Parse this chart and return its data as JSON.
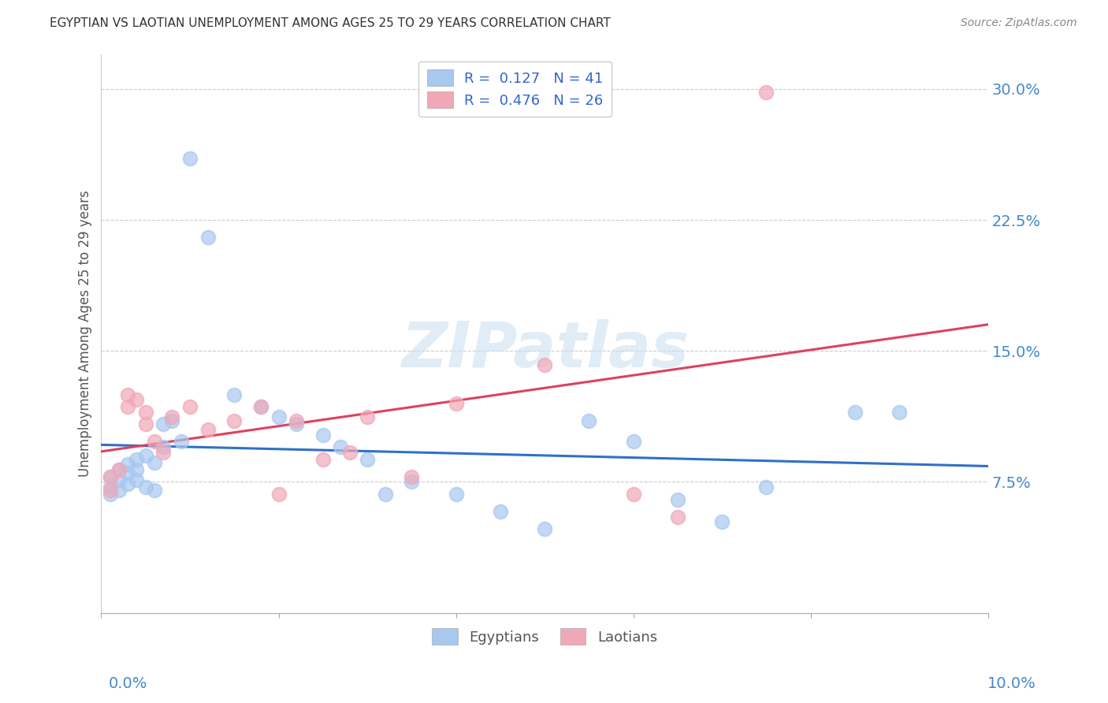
{
  "title": "EGYPTIAN VS LAOTIAN UNEMPLOYMENT AMONG AGES 25 TO 29 YEARS CORRELATION CHART",
  "source": "Source: ZipAtlas.com",
  "ylabel": "Unemployment Among Ages 25 to 29 years",
  "xlim": [
    0.0,
    0.1
  ],
  "ylim": [
    0.0,
    0.32
  ],
  "yticks": [
    0.075,
    0.15,
    0.225,
    0.3
  ],
  "ytick_labels": [
    "7.5%",
    "15.0%",
    "22.5%",
    "30.0%"
  ],
  "legend1_R": "0.127",
  "legend1_N": "41",
  "legend2_R": "0.476",
  "legend2_N": "26",
  "blue_color": "#a8c8f0",
  "pink_color": "#f0a8b8",
  "blue_line_color": "#3070c8",
  "pink_line_color": "#e04060",
  "axis_label_color": "#4488cc",
  "grid_color": "#cccccc",
  "watermark_color": "#c8ddf0",
  "egyptians_x": [
    0.001,
    0.001,
    0.001,
    0.002,
    0.002,
    0.002,
    0.003,
    0.003,
    0.003,
    0.004,
    0.004,
    0.004,
    0.005,
    0.005,
    0.006,
    0.006,
    0.007,
    0.007,
    0.008,
    0.009,
    0.01,
    0.012,
    0.015,
    0.018,
    0.02,
    0.022,
    0.025,
    0.027,
    0.03,
    0.032,
    0.035,
    0.04,
    0.045,
    0.05,
    0.055,
    0.06,
    0.065,
    0.07,
    0.075,
    0.085,
    0.09
  ],
  "egyptians_y": [
    0.078,
    0.072,
    0.068,
    0.082,
    0.076,
    0.07,
    0.085,
    0.08,
    0.074,
    0.088,
    0.082,
    0.076,
    0.09,
    0.072,
    0.086,
    0.07,
    0.108,
    0.095,
    0.11,
    0.098,
    0.26,
    0.215,
    0.125,
    0.118,
    0.112,
    0.108,
    0.102,
    0.095,
    0.088,
    0.068,
    0.075,
    0.068,
    0.058,
    0.048,
    0.11,
    0.098,
    0.065,
    0.052,
    0.072,
    0.115,
    0.115
  ],
  "laotians_x": [
    0.001,
    0.001,
    0.002,
    0.003,
    0.003,
    0.004,
    0.005,
    0.005,
    0.006,
    0.007,
    0.008,
    0.01,
    0.012,
    0.015,
    0.018,
    0.02,
    0.022,
    0.025,
    0.028,
    0.03,
    0.035,
    0.04,
    0.05,
    0.06,
    0.065,
    0.075
  ],
  "laotians_y": [
    0.078,
    0.07,
    0.082,
    0.125,
    0.118,
    0.122,
    0.115,
    0.108,
    0.098,
    0.092,
    0.112,
    0.118,
    0.105,
    0.11,
    0.118,
    0.068,
    0.11,
    0.088,
    0.092,
    0.112,
    0.078,
    0.12,
    0.142,
    0.068,
    0.055,
    0.298
  ]
}
